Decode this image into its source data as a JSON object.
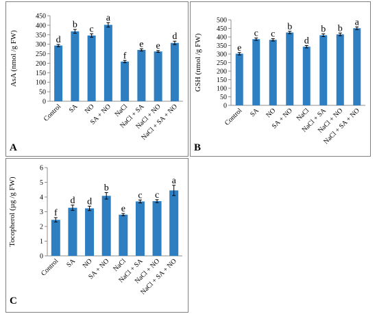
{
  "colors": {
    "bar": "#2e7fc2",
    "axis": "#8c8c8c",
    "error": "#000000",
    "frame": "#7f7f7f"
  },
  "chart_data": [
    {
      "type": "bar",
      "panel": "A",
      "ylabel": "AsA (nmol /g FW)",
      "categories": [
        "Control",
        "SA",
        "NO",
        "SA + NO",
        "NaCl",
        "NaCl + SA",
        "NaCl + NO",
        "NaCl + SA + NO"
      ],
      "values": [
        293,
        368,
        346,
        402,
        209,
        270,
        262,
        307
      ],
      "errors": [
        6,
        10,
        9,
        12,
        6,
        6,
        5,
        9
      ],
      "letters": [
        "d",
        "b",
        "c",
        "a",
        "f",
        "e",
        "e",
        "d"
      ],
      "ylim": [
        0,
        450
      ],
      "yticks": [
        0,
        50,
        100,
        150,
        200,
        250,
        300,
        350,
        400,
        450
      ],
      "grid": false,
      "legend": "none"
    },
    {
      "type": "bar",
      "panel": "B",
      "ylabel": "GSH (nmol /g FW)",
      "categories": [
        "Control",
        "SA",
        "NO",
        "SA + NO",
        "NaCl",
        "NaCl + SA",
        "NaCl + NO",
        "NaCl + SA + NO"
      ],
      "values": [
        302,
        387,
        383,
        426,
        343,
        410,
        415,
        451
      ],
      "errors": [
        7,
        7,
        7,
        7,
        7,
        8,
        8,
        8
      ],
      "letters": [
        "e",
        "c",
        "c",
        "b",
        "d",
        "b",
        "b",
        "a"
      ],
      "ylim": [
        0,
        500
      ],
      "yticks": [
        0,
        50,
        100,
        150,
        200,
        250,
        300,
        350,
        400,
        450,
        500
      ],
      "grid": false,
      "legend": "none"
    },
    {
      "type": "bar",
      "panel": "C",
      "ylabel": "Tocopherol (µg /g FW)",
      "categories": [
        "Control",
        "SA",
        "NO",
        "SA + NO",
        "NaCl",
        "NaCl + SA",
        "NaCl + NO",
        "NaCl + SA + NO"
      ],
      "values": [
        2.45,
        3.27,
        3.23,
        4.08,
        2.8,
        3.7,
        3.72,
        4.45
      ],
      "errors": [
        0.15,
        0.18,
        0.15,
        0.22,
        0.08,
        0.1,
        0.1,
        0.35
      ],
      "letters": [
        "f",
        "d",
        "d",
        "b",
        "e",
        "c",
        "c",
        "a"
      ],
      "ylim": [
        0,
        6
      ],
      "yticks": [
        0,
        1,
        2,
        3,
        4,
        5,
        6
      ],
      "grid": false,
      "legend": "none"
    }
  ],
  "panels": {
    "A": {
      "label": "A"
    },
    "B": {
      "label": "B"
    },
    "C": {
      "label": "C"
    }
  }
}
